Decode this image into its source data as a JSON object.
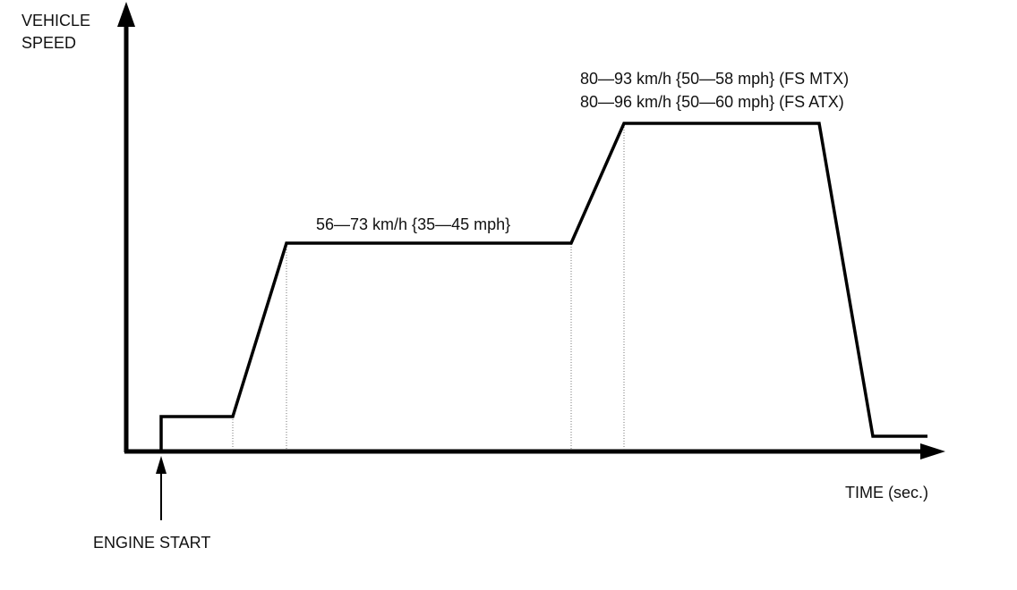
{
  "axes": {
    "y_label": [
      "VEHICLE",
      "SPEED"
    ],
    "x_label": "TIME (sec.)"
  },
  "annotations": {
    "engine_start": "ENGINE START",
    "cruise_1": "56—73 km/h {35—45 mph}",
    "cruise_2": [
      "80—93 km/h {50—58 mph} (FS MTX)",
      "80—96 km/h {50—60 mph} (FS ATX)"
    ]
  }
}
